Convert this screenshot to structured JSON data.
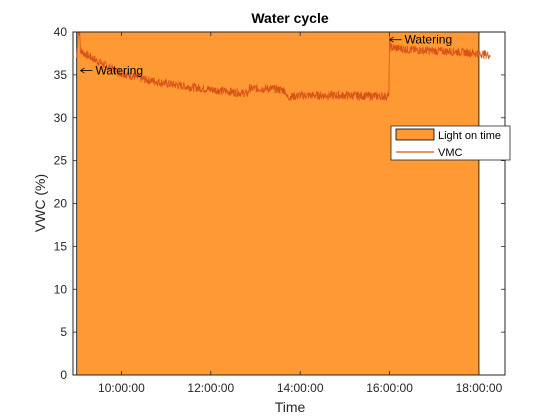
{
  "chart_data": {
    "type": "area",
    "title": "Water cycle",
    "xlabel": "Time",
    "ylabel": "VWC (%)",
    "xlim": [
      "08:55",
      "18:35"
    ],
    "ylim": [
      0,
      40
    ],
    "x_ticks": [
      "10:00:00",
      "12:00:00",
      "14:00:00",
      "16:00:00",
      "18:00:00"
    ],
    "y_ticks": [
      0,
      5,
      10,
      15,
      20,
      25,
      30,
      35,
      40
    ],
    "grid": false,
    "legend_position": "right",
    "colors": {
      "light": "#FF9933",
      "vmc": "#D95319",
      "axis": "#262626"
    },
    "series": [
      {
        "name": "Light on time",
        "kind": "area",
        "start": "09:00",
        "end": "18:00",
        "value": 40
      },
      {
        "name": "VMC",
        "kind": "line",
        "noise": 0.5,
        "points": [
          [
            "09:00",
            37.0
          ],
          [
            "09:02",
            40.0
          ],
          [
            "09:04",
            40.0
          ],
          [
            "09:05",
            37.8
          ],
          [
            "09:10",
            37.5
          ],
          [
            "09:20",
            37.0
          ],
          [
            "09:30",
            36.5
          ],
          [
            "09:45",
            35.8
          ],
          [
            "10:00",
            35.2
          ],
          [
            "10:30",
            34.5
          ],
          [
            "11:00",
            34.0
          ],
          [
            "11:30",
            33.6
          ],
          [
            "12:00",
            33.3
          ],
          [
            "12:30",
            33.0
          ],
          [
            "12:50",
            32.8
          ],
          [
            "12:51",
            33.4
          ],
          [
            "13:20",
            33.4
          ],
          [
            "13:40",
            33.2
          ],
          [
            "13:42",
            32.4
          ],
          [
            "14:00",
            32.6
          ],
          [
            "15:00",
            32.6
          ],
          [
            "15:59",
            32.5
          ],
          [
            "16:00",
            40.0
          ],
          [
            "16:01",
            38.2
          ],
          [
            "16:30",
            37.9
          ],
          [
            "17:00",
            37.8
          ],
          [
            "17:30",
            37.7
          ],
          [
            "18:00",
            37.5
          ],
          [
            "18:15",
            37.3
          ]
        ]
      }
    ],
    "annotations": [
      {
        "text": "Watering",
        "x": "09:05",
        "y": 35.5
      },
      {
        "text": "Watering",
        "x": "16:00",
        "y": 39.1
      }
    ]
  }
}
